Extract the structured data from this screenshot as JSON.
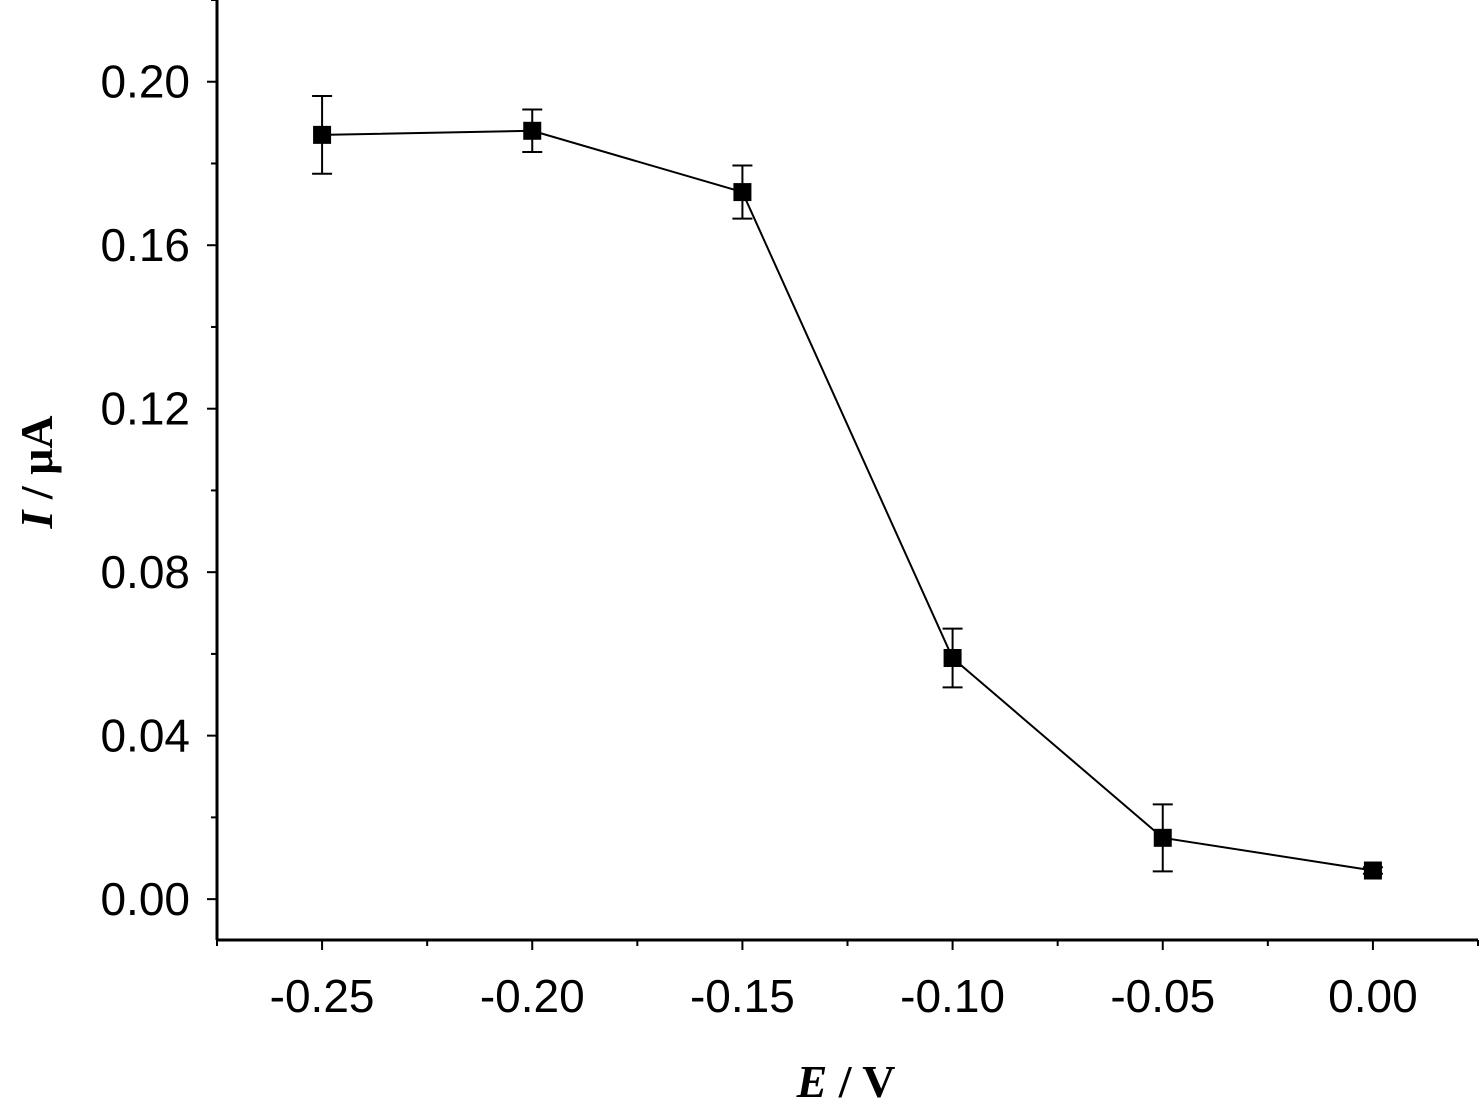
{
  "chart_data": {
    "type": "scatter",
    "x": [
      -0.25,
      -0.2,
      -0.15,
      -0.1,
      -0.05,
      0.0
    ],
    "series": [
      {
        "values": [
          0.187,
          0.188,
          0.173,
          0.059,
          0.015,
          0.007
        ],
        "errors": [
          0.0095,
          0.0052,
          0.0065,
          0.0072,
          0.0082,
          0.0008
        ],
        "marker": "square",
        "line": "solid",
        "color": "#000000"
      }
    ],
    "xlabel": {
      "var": "E",
      "unit": " / V"
    },
    "ylabel": {
      "var": "I",
      "unit": " / μA"
    },
    "xlim": [
      -0.275,
      0.025
    ],
    "ylim": [
      -0.01,
      0.22
    ],
    "xticks": [
      -0.25,
      -0.2,
      -0.15,
      -0.1,
      -0.05,
      0.0
    ],
    "xtick_labels": [
      "-0.25",
      "-0.20",
      "-0.15",
      "-0.10",
      "-0.05",
      "0.00"
    ],
    "yticks": [
      0.0,
      0.04,
      0.08,
      0.12,
      0.16,
      0.2
    ],
    "ytick_labels": [
      "0.00",
      "0.04",
      "0.08",
      "0.12",
      "0.16",
      "0.20"
    ],
    "grid": false,
    "legend": "none"
  }
}
